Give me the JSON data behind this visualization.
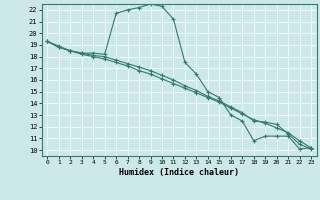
{
  "xlabel": "Humidex (Indice chaleur)",
  "background_color": "#cce8e8",
  "grid_color": "#ffffff",
  "line_color": "#2e7d6e",
  "xlim": [
    -0.5,
    23.5
  ],
  "ylim": [
    9.5,
    22.5
  ],
  "xticks": [
    0,
    1,
    2,
    3,
    4,
    5,
    6,
    7,
    8,
    9,
    10,
    11,
    12,
    13,
    14,
    15,
    16,
    17,
    18,
    19,
    20,
    21,
    22,
    23
  ],
  "yticks": [
    10,
    11,
    12,
    13,
    14,
    15,
    16,
    17,
    18,
    19,
    20,
    21,
    22
  ],
  "series": [
    {
      "x": [
        0,
        1,
        2,
        3,
        4,
        5,
        6,
        7,
        8,
        9,
        10,
        11,
        12,
        13,
        14,
        15,
        16,
        17,
        18,
        19,
        20,
        21,
        22,
        23
      ],
      "y": [
        19.3,
        18.9,
        18.5,
        18.3,
        18.3,
        18.2,
        21.7,
        22.0,
        22.2,
        22.5,
        22.3,
        21.2,
        17.5,
        16.5,
        15.0,
        14.5,
        13.0,
        12.5,
        10.8,
        11.2,
        11.2,
        11.2,
        10.1,
        10.2
      ]
    },
    {
      "x": [
        0,
        1,
        2,
        3,
        4,
        5,
        6,
        7,
        8,
        9,
        10,
        11,
        12,
        13,
        14,
        15,
        16,
        17,
        18,
        19,
        20,
        21,
        22,
        23
      ],
      "y": [
        19.3,
        18.8,
        18.5,
        18.3,
        18.1,
        18.0,
        17.7,
        17.4,
        17.1,
        16.8,
        16.4,
        16.0,
        15.5,
        15.1,
        14.6,
        14.2,
        13.7,
        13.2,
        12.5,
        12.4,
        12.2,
        11.4,
        10.5,
        10.1
      ]
    },
    {
      "x": [
        0,
        1,
        2,
        3,
        4,
        5,
        6,
        7,
        8,
        9,
        10,
        11,
        12,
        13,
        14,
        15,
        16,
        17,
        18,
        19,
        20,
        21,
        22,
        23
      ],
      "y": [
        19.3,
        18.8,
        18.5,
        18.2,
        18.0,
        17.8,
        17.5,
        17.2,
        16.8,
        16.5,
        16.1,
        15.7,
        15.3,
        14.9,
        14.5,
        14.1,
        13.6,
        13.1,
        12.6,
        12.3,
        11.9,
        11.5,
        10.8,
        10.2
      ]
    }
  ]
}
